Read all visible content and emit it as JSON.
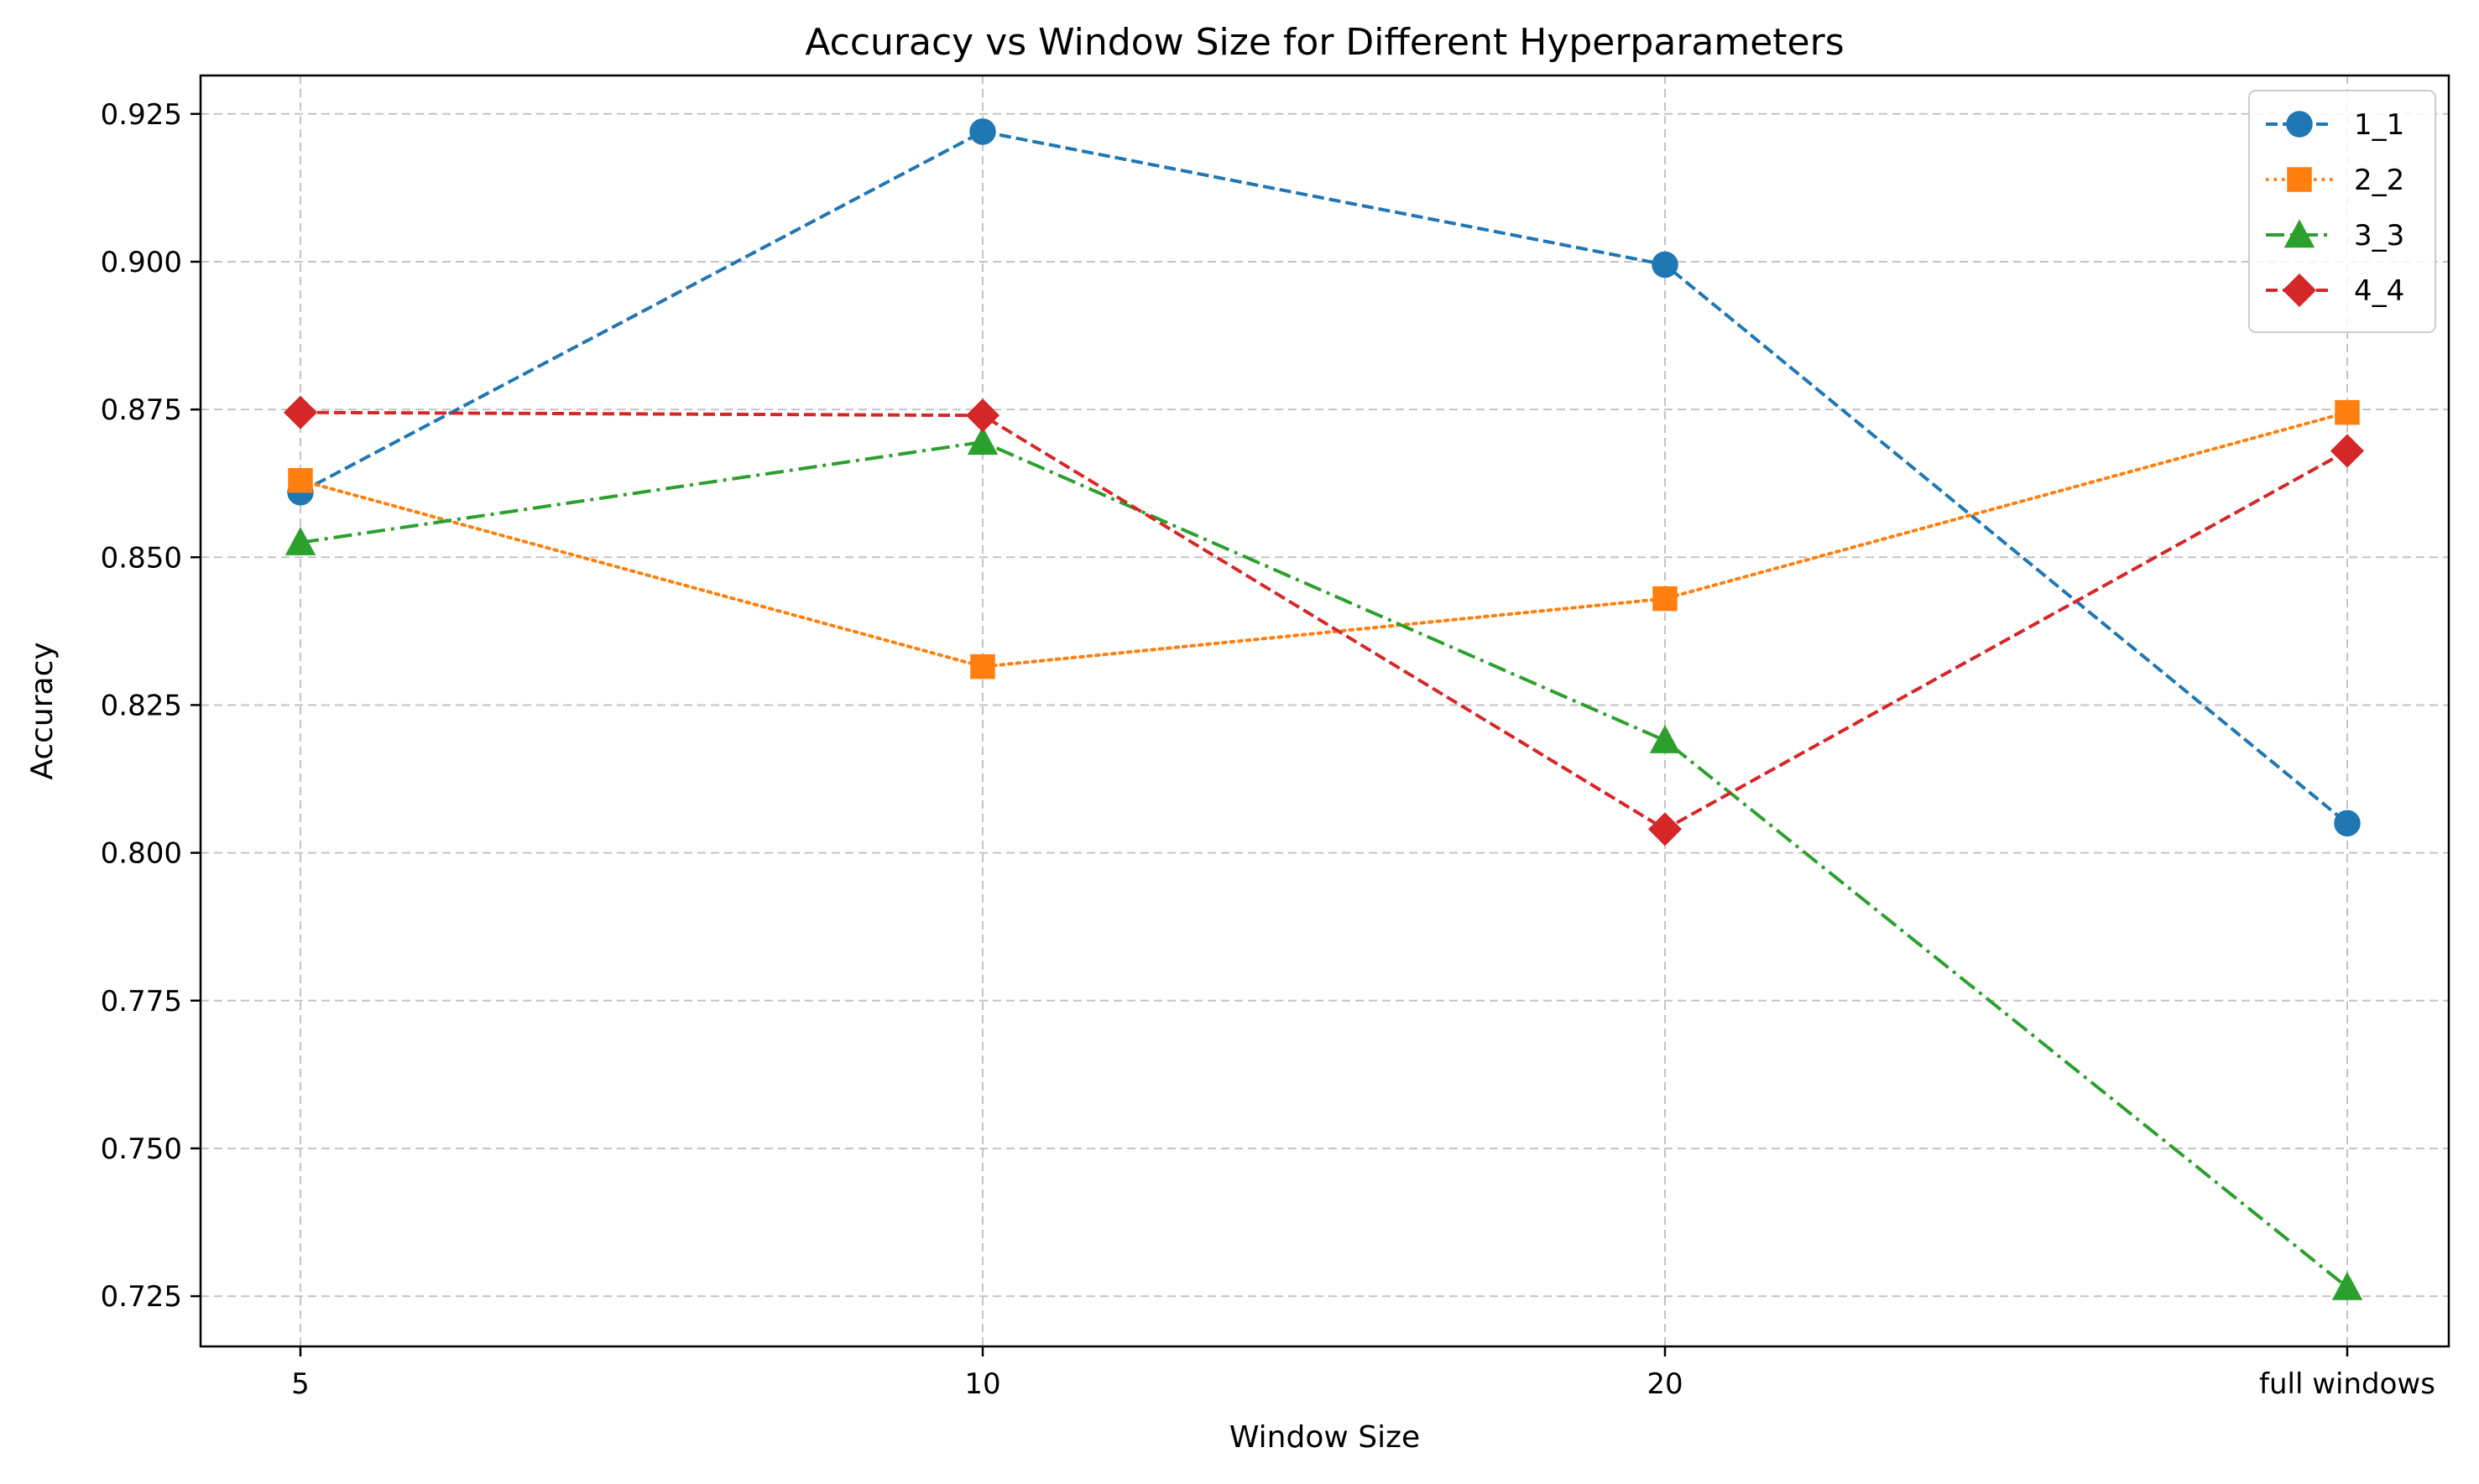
{
  "chart_data": {
    "type": "line",
    "title": "Accuracy vs Window Size for Different Hyperparameters",
    "xlabel": "Window Size",
    "ylabel": "Accuracy",
    "categories": [
      "5",
      "10",
      "20",
      "full windows"
    ],
    "ylim": [
      0.7165,
      0.9315
    ],
    "yticks": [
      "0.725",
      "0.750",
      "0.775",
      "0.800",
      "0.825",
      "0.850",
      "0.875",
      "0.900",
      "0.925"
    ],
    "grid": true,
    "legend_position": "top-right",
    "series": [
      {
        "name": "1_1",
        "values": [
          0.861,
          0.922,
          0.8995,
          0.805
        ],
        "color": "#1f77b4",
        "marker": "circle",
        "linestyle": "dashed"
      },
      {
        "name": "2_2",
        "values": [
          0.863,
          0.8315,
          0.843,
          0.8745
        ],
        "color": "#ff7f0e",
        "marker": "square",
        "linestyle": "dotted"
      },
      {
        "name": "3_3",
        "values": [
          0.8525,
          0.8695,
          0.819,
          0.7265
        ],
        "color": "#2ca02c",
        "marker": "triangle",
        "linestyle": "dashdot"
      },
      {
        "name": "4_4",
        "values": [
          0.8745,
          0.874,
          0.804,
          0.868
        ],
        "color": "#d62728",
        "marker": "diamond",
        "linestyle": "dashed"
      }
    ]
  }
}
